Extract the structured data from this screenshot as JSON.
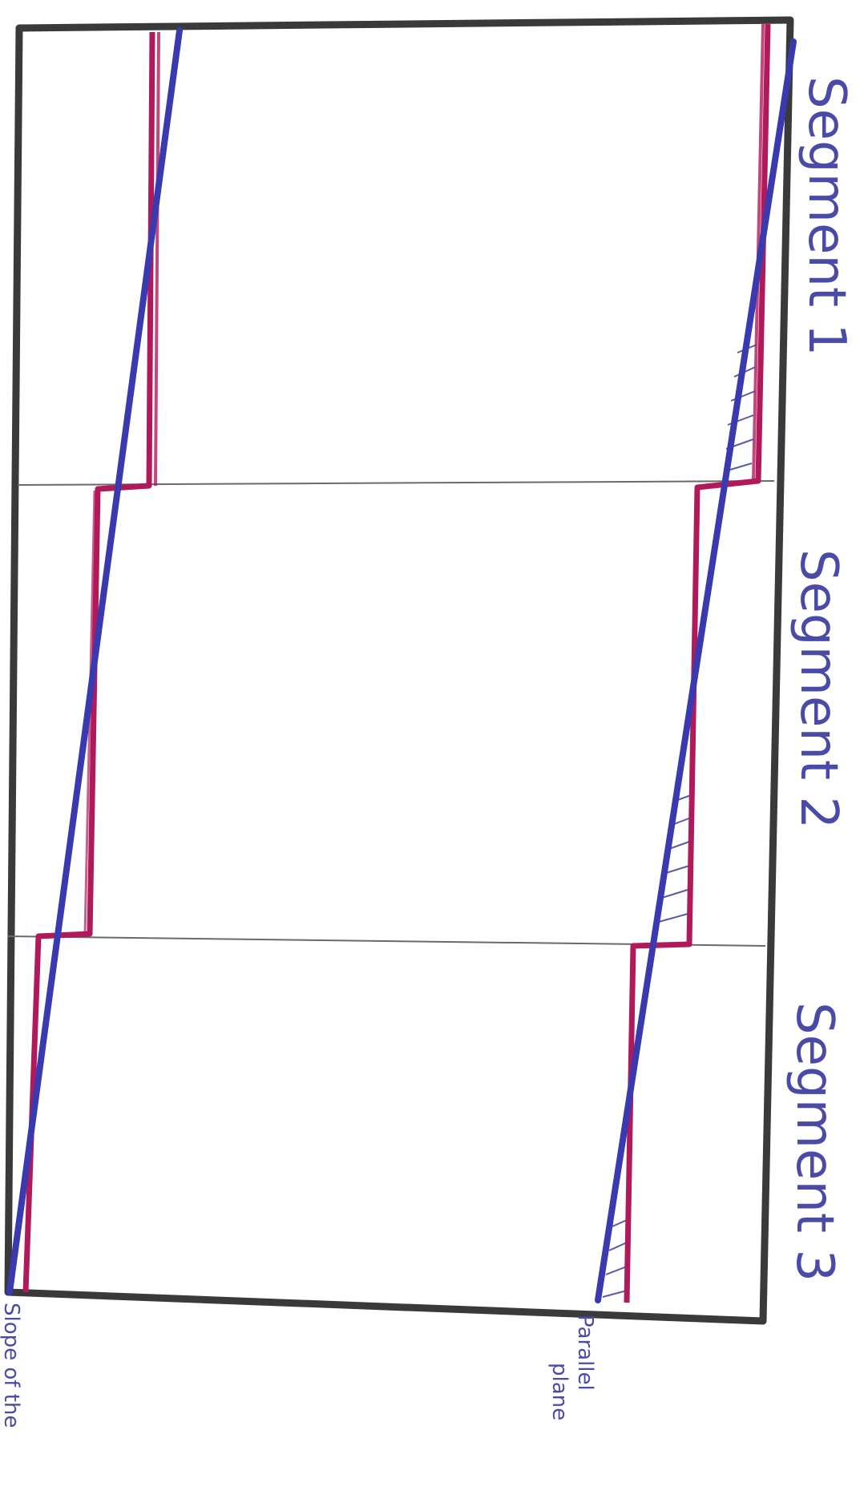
{
  "diagram": {
    "segment_labels": [
      "Segment 1",
      "Segment 2",
      "Segment 3"
    ],
    "annotations": {
      "parallel_plane_line1": "Parallel",
      "parallel_plane_line2": "plane",
      "slope_note": "Slope of the"
    },
    "colors": {
      "frame": "#3a3a3a",
      "divider": "#6a6a6a",
      "stepped_line": "#b01a5a",
      "slope_line": "#3a3ab0",
      "handwriting": "#4a4aa8",
      "hatch": "#5a5aa8"
    }
  }
}
